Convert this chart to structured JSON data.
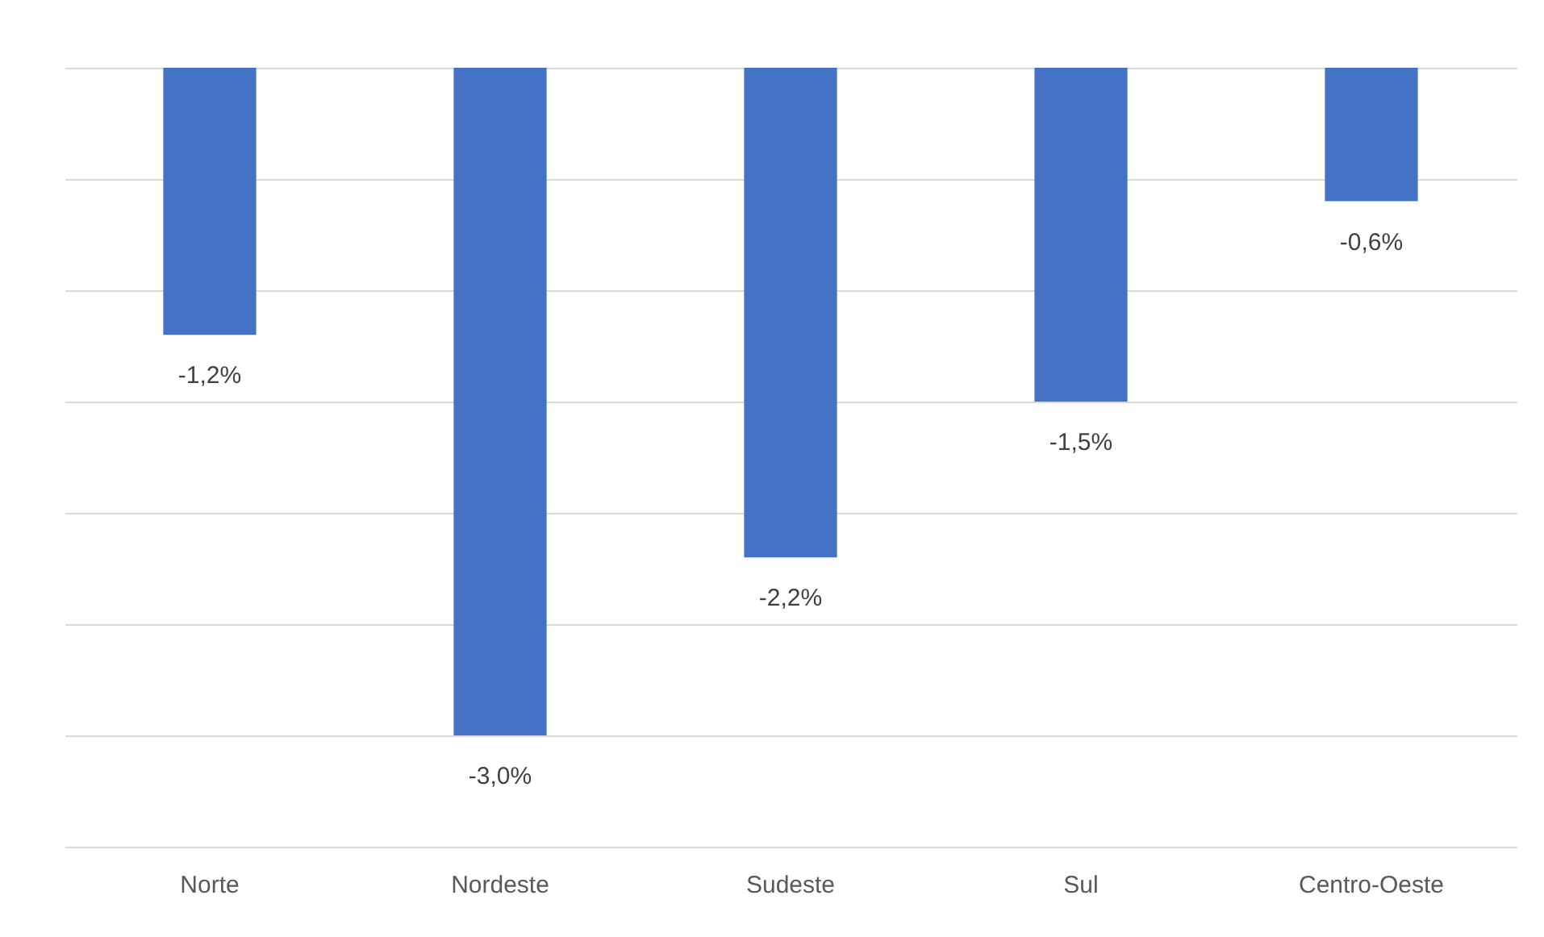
{
  "chart_data": {
    "type": "bar",
    "categories": [
      "Norte",
      "Nordeste",
      "Sudeste",
      "Sul",
      "Centro-Oeste"
    ],
    "values": [
      -1.2,
      -3.0,
      -2.2,
      -1.5,
      -0.6
    ],
    "value_labels": [
      "-1,2%",
      "-3,0%",
      "-2,2%",
      "-1,5%",
      "-0,6%"
    ],
    "color": "#4472c4",
    "ylim": [
      -3.5,
      0
    ],
    "yticks": [
      {
        "value": 0,
        "label": null
      },
      {
        "value": -0.5,
        "label": null
      },
      {
        "value": -1,
        "label": null
      },
      {
        "value": -1.5,
        "label": null
      },
      {
        "value": -2,
        "label": null
      },
      {
        "value": -2.5,
        "label": null
      },
      {
        "value": -3,
        "label": null
      },
      {
        "value": -3.5,
        "label": null
      }
    ],
    "grid": "y",
    "tick_labels": "x"
  }
}
